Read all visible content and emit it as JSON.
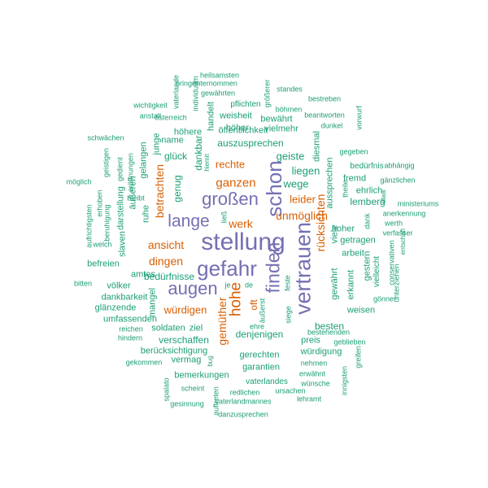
{
  "colors": {
    "high": "#7570b3",
    "mid": "#d95f02",
    "low": "#1b9e77"
  },
  "words": [
    {
      "text": "stellung",
      "tier": "high"
    },
    {
      "text": "gefahr",
      "tier": "high"
    },
    {
      "text": "vertrauen",
      "tier": "high"
    },
    {
      "text": "schon",
      "tier": "high"
    },
    {
      "text": "finden",
      "tier": "high"
    },
    {
      "text": "großen",
      "tier": "high"
    },
    {
      "text": "augen",
      "tier": "high"
    },
    {
      "text": "lange",
      "tier": "high"
    },
    {
      "text": "hohe",
      "tier": "mid"
    },
    {
      "text": "oft",
      "tier": "mid"
    },
    {
      "text": "ganzen",
      "tier": "mid"
    },
    {
      "text": "ansicht",
      "tier": "mid"
    },
    {
      "text": "dingen",
      "tier": "mid"
    },
    {
      "text": "unmöglich",
      "tier": "mid"
    },
    {
      "text": "leider",
      "tier": "mid"
    },
    {
      "text": "werk",
      "tier": "mid"
    },
    {
      "text": "würdigen",
      "tier": "mid"
    },
    {
      "text": "rücksichten",
      "tier": "mid"
    },
    {
      "text": "betrachten",
      "tier": "mid"
    },
    {
      "text": "rechte",
      "tier": "mid"
    },
    {
      "text": "gemüther",
      "tier": "mid"
    },
    {
      "text": "liegen",
      "tier": "low"
    },
    {
      "text": "wege",
      "tier": "low"
    },
    {
      "text": "geiste",
      "tier": "low"
    },
    {
      "text": "auszusprechen",
      "tier": "low"
    },
    {
      "text": "öffentlichkeit",
      "tier": "low"
    },
    {
      "text": "glück",
      "tier": "low"
    },
    {
      "text": "genug",
      "tier": "low"
    },
    {
      "text": "dankbar",
      "tier": "low"
    },
    {
      "text": "höher",
      "tier": "low"
    },
    {
      "text": "vielmehr",
      "tier": "low"
    },
    {
      "text": "bewährt",
      "tier": "low"
    },
    {
      "text": "weisheit",
      "tier": "low"
    },
    {
      "text": "pflichten",
      "tier": "low"
    },
    {
      "text": "höhere",
      "tier": "low"
    },
    {
      "text": "name",
      "tier": "low"
    },
    {
      "text": "handelt",
      "tier": "low"
    },
    {
      "text": "junge",
      "tier": "low"
    },
    {
      "text": "gelangen",
      "tier": "low"
    },
    {
      "text": "ruhe",
      "tier": "low"
    },
    {
      "text": "äußeren",
      "tier": "low"
    },
    {
      "text": "darstellung",
      "tier": "low"
    },
    {
      "text": "slaven",
      "tier": "low"
    },
    {
      "text": "bedürfnisse",
      "tier": "low"
    },
    {
      "text": "amtes",
      "tier": "low"
    },
    {
      "text": "befreien",
      "tier": "low"
    },
    {
      "text": "völker",
      "tier": "low"
    },
    {
      "text": "dankbarkeit",
      "tier": "low"
    },
    {
      "text": "glänzende",
      "tier": "low"
    },
    {
      "text": "umfassenden",
      "tier": "low"
    },
    {
      "text": "mangel",
      "tier": "low"
    },
    {
      "text": "soldaten",
      "tier": "low"
    },
    {
      "text": "ziel",
      "tier": "low"
    },
    {
      "text": "verschaffen",
      "tier": "low"
    },
    {
      "text": "berücksichtigung",
      "tier": "low"
    },
    {
      "text": "vermag",
      "tier": "low"
    },
    {
      "text": "denjenigen",
      "tier": "low"
    },
    {
      "text": "gerechten",
      "tier": "low"
    },
    {
      "text": "garantien",
      "tier": "low"
    },
    {
      "text": "bemerkungen",
      "tier": "low"
    },
    {
      "text": "vaterlandes",
      "tier": "low"
    },
    {
      "text": "preis",
      "tier": "low"
    },
    {
      "text": "besten",
      "tier": "low"
    },
    {
      "text": "würdigung",
      "tier": "low"
    },
    {
      "text": "weisen",
      "tier": "low"
    },
    {
      "text": "erkannt",
      "tier": "low"
    },
    {
      "text": "gewährt",
      "tier": "low"
    },
    {
      "text": "arbeit",
      "tier": "low"
    },
    {
      "text": "getragen",
      "tier": "low"
    },
    {
      "text": "hoher",
      "tier": "low"
    },
    {
      "text": "viele",
      "tier": "low"
    },
    {
      "text": "lemberg",
      "tier": "low"
    },
    {
      "text": "fremd",
      "tier": "low"
    },
    {
      "text": "ehrlich",
      "tier": "low"
    },
    {
      "text": "aussprechen",
      "tier": "low"
    },
    {
      "text": "diesmal",
      "tier": "low"
    },
    {
      "text": "theile",
      "tier": "low"
    },
    {
      "text": "gestern",
      "tier": "low"
    },
    {
      "text": "vielleicht",
      "tier": "low"
    },
    {
      "text": "bedürfnis",
      "tier": "low"
    },
    {
      "text": "gegeben",
      "tier": "low"
    },
    {
      "text": "abhängig",
      "tier": "low"
    },
    {
      "text": "gänzlichen",
      "tier": "low"
    },
    {
      "text": "ministeriums",
      "tier": "low"
    },
    {
      "text": "anerkennung",
      "tier": "low"
    },
    {
      "text": "werth",
      "tier": "low"
    },
    {
      "text": "verfasser",
      "tier": "low"
    },
    {
      "text": "gönner",
      "tier": "low"
    },
    {
      "text": "unterziehen",
      "tier": "low"
    },
    {
      "text": "entschaft",
      "tier": "low"
    },
    {
      "text": "conservativen",
      "tier": "low"
    },
    {
      "text": "dank",
      "tier": "low"
    },
    {
      "text": "bestehenden",
      "tier": "low"
    },
    {
      "text": "geblieben",
      "tier": "low"
    },
    {
      "text": "greifen",
      "tier": "low"
    },
    {
      "text": "innigsten",
      "tier": "low"
    },
    {
      "text": "nehmen",
      "tier": "low"
    },
    {
      "text": "erwähnt",
      "tier": "low"
    },
    {
      "text": "wünsche",
      "tier": "low"
    },
    {
      "text": "ursachen",
      "tier": "low"
    },
    {
      "text": "lehramt",
      "tier": "low"
    },
    {
      "text": "redlichen",
      "tier": "low"
    },
    {
      "text": "vaterlandmannes",
      "tier": "low"
    },
    {
      "text": "danzusprechen",
      "tier": "low"
    },
    {
      "text": "auftreten",
      "tier": "low"
    },
    {
      "text": "scheint",
      "tier": "low"
    },
    {
      "text": "gesinnung",
      "tier": "low"
    },
    {
      "text": "spalato",
      "tier": "low"
    },
    {
      "text": "bug",
      "tier": "low"
    },
    {
      "text": "gekommen",
      "tier": "low"
    },
    {
      "text": "hindern",
      "tier": "low"
    },
    {
      "text": "reichen",
      "tier": "low"
    },
    {
      "text": "bitten",
      "tier": "low"
    },
    {
      "text": "welch",
      "tier": "low"
    },
    {
      "text": "beruhigung",
      "tier": "low"
    },
    {
      "text": "aufrichtigsten",
      "tier": "low"
    },
    {
      "text": "erhoben",
      "tier": "low"
    },
    {
      "text": "möglich",
      "tier": "low"
    },
    {
      "text": "geistigen",
      "tier": "low"
    },
    {
      "text": "gedient",
      "tier": "low"
    },
    {
      "text": "eröffnungen",
      "tier": "low"
    },
    {
      "text": "bleibt",
      "tier": "low"
    },
    {
      "text": "schwächen",
      "tier": "low"
    },
    {
      "text": "anstalt",
      "tier": "low"
    },
    {
      "text": "wichtigkeit",
      "tier": "low"
    },
    {
      "text": "österreich",
      "tier": "low"
    },
    {
      "text": "vaterlande",
      "tier": "low"
    },
    {
      "text": "bringen",
      "tier": "low"
    },
    {
      "text": "individuum",
      "tier": "low"
    },
    {
      "text": "heilsamsten",
      "tier": "low"
    },
    {
      "text": "unternommen",
      "tier": "low"
    },
    {
      "text": "gewährten",
      "tier": "low"
    },
    {
      "text": "standes",
      "tier": "low"
    },
    {
      "text": "größerer",
      "tier": "low"
    },
    {
      "text": "böhmen",
      "tier": "low"
    },
    {
      "text": "bestreben",
      "tier": "low"
    },
    {
      "text": "beantworten",
      "tier": "low"
    },
    {
      "text": "dunkel",
      "tier": "low"
    },
    {
      "text": "vorwurf",
      "tier": "low"
    },
    {
      "text": "hiemit",
      "tier": "low"
    },
    {
      "text": "ließ",
      "tier": "low"
    },
    {
      "text": "je",
      "tier": "low"
    },
    {
      "text": "de",
      "tier": "low"
    },
    {
      "text": "äußerst",
      "tier": "low"
    },
    {
      "text": "ehre",
      "tier": "low"
    },
    {
      "text": "feste",
      "tier": "low"
    },
    {
      "text": "siege",
      "tier": "low"
    },
    {
      "text": "elwa",
      "tier": "low"
    }
  ]
}
